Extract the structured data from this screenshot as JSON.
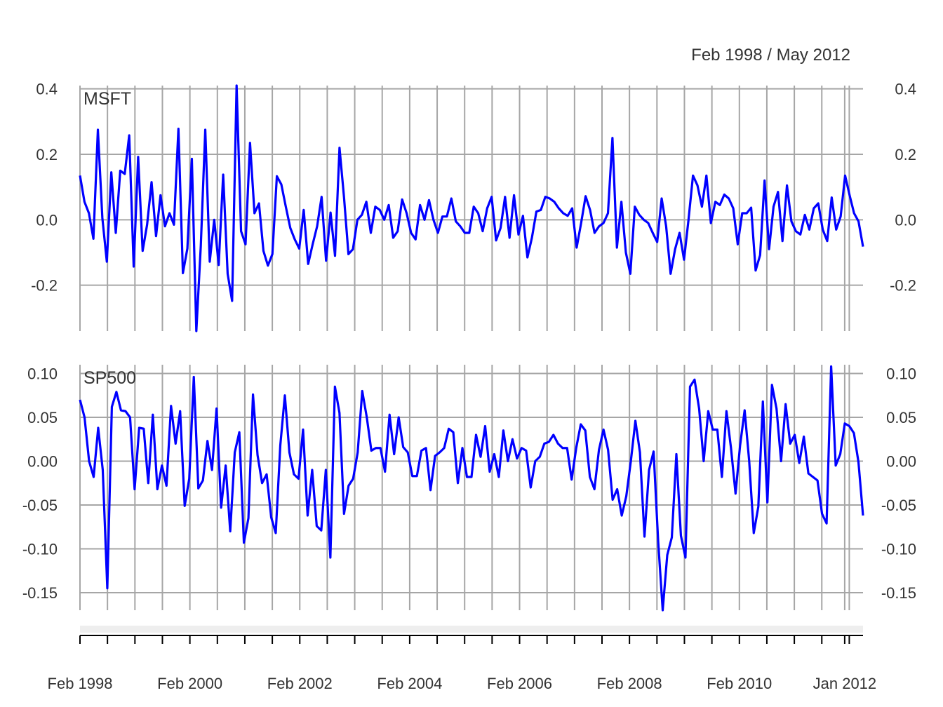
{
  "chart_data": {
    "type": "line",
    "range_label": "Feb 1998 / May 2012",
    "x_start": "1998-02",
    "x_end": "2012-05",
    "x_ticks": [
      "Feb 1998",
      "Feb 2000",
      "Feb 2002",
      "Feb 2004",
      "Feb 2006",
      "Feb 2008",
      "Feb 2010",
      "Jan 2012"
    ],
    "grid": true,
    "line_color": "#0000ff",
    "grid_color": "#a6a6a6",
    "panels": [
      {
        "name": "MSFT",
        "ylim": [
          -0.34,
          0.41
        ],
        "y_ticks": [
          -0.2,
          0.0,
          0.2,
          0.4
        ],
        "y_tick_labels": [
          "-0.2",
          "0.0",
          "0.2",
          "0.4"
        ],
        "values": [
          0.135,
          0.055,
          0.02,
          -0.058,
          0.275,
          0.005,
          -0.128,
          0.145,
          -0.04,
          0.15,
          0.14,
          0.258,
          -0.143,
          0.192,
          -0.095,
          -0.015,
          0.115,
          -0.05,
          0.075,
          -0.02,
          0.02,
          -0.015,
          0.278,
          -0.163,
          -0.088,
          0.186,
          -0.34,
          -0.08,
          0.275,
          -0.128,
          0.0,
          -0.138,
          0.138,
          -0.165,
          -0.248,
          0.41,
          -0.035,
          -0.075,
          0.235,
          0.02,
          0.05,
          -0.095,
          -0.14,
          -0.105,
          0.133,
          0.108,
          0.04,
          -0.025,
          -0.06,
          -0.088,
          0.03,
          -0.135,
          -0.075,
          -0.02,
          0.07,
          -0.125,
          0.022,
          -0.11,
          0.22,
          0.07,
          -0.105,
          -0.09,
          0.0,
          0.015,
          0.055,
          -0.04,
          0.04,
          0.03,
          0.0,
          0.045,
          -0.055,
          -0.035,
          0.062,
          0.02,
          -0.04,
          -0.06,
          0.045,
          0.0,
          0.06,
          0.0,
          -0.04,
          0.01,
          0.01,
          0.065,
          -0.005,
          -0.02,
          -0.04,
          -0.04,
          0.04,
          0.02,
          -0.035,
          0.035,
          0.07,
          -0.063,
          -0.025,
          0.07,
          -0.055,
          0.075,
          -0.045,
          0.012,
          -0.115,
          -0.055,
          0.025,
          0.03,
          0.07,
          0.065,
          0.055,
          0.035,
          0.02,
          0.012,
          0.035,
          -0.085,
          -0.01,
          0.072,
          0.03,
          -0.04,
          -0.02,
          -0.01,
          0.02,
          0.25,
          -0.085,
          0.055,
          -0.1,
          -0.165,
          0.04,
          0.015,
          0.0,
          -0.01,
          -0.04,
          -0.068,
          0.065,
          -0.02,
          -0.165,
          -0.09,
          -0.04,
          -0.122,
          0.0,
          0.135,
          0.105,
          0.04,
          0.135,
          -0.01,
          0.055,
          0.045,
          0.077,
          0.065,
          0.035,
          -0.075,
          0.02,
          0.02,
          0.037,
          -0.155,
          -0.108,
          0.12,
          -0.09,
          0.04,
          0.085,
          -0.065,
          0.105,
          -0.005,
          -0.035,
          -0.045,
          0.015,
          -0.03,
          0.035,
          0.05,
          -0.03,
          -0.065,
          0.068,
          -0.03,
          0.01,
          0.135,
          0.075,
          0.02,
          -0.005,
          -0.082
        ]
      },
      {
        "name": "SP500",
        "ylim": [
          -0.17,
          0.11
        ],
        "y_ticks": [
          -0.15,
          -0.1,
          -0.05,
          0.0,
          0.05,
          0.1
        ],
        "y_tick_labels": [
          "-0.15",
          "-0.10",
          "-0.05",
          "0.00",
          "0.05",
          "0.10"
        ],
        "values": [
          0.07,
          0.05,
          0.0,
          -0.018,
          0.038,
          -0.01,
          -0.145,
          0.062,
          0.079,
          0.058,
          0.057,
          0.05,
          -0.032,
          0.038,
          0.037,
          -0.025,
          0.053,
          -0.032,
          -0.005,
          -0.028,
          0.063,
          0.02,
          0.057,
          -0.051,
          -0.02,
          0.096,
          -0.031,
          -0.022,
          0.023,
          -0.01,
          0.06,
          -0.053,
          -0.005,
          -0.08,
          0.01,
          0.033,
          -0.093,
          -0.065,
          0.076,
          0.007,
          -0.025,
          -0.015,
          -0.064,
          -0.082,
          0.018,
          0.075,
          0.01,
          -0.015,
          -0.02,
          0.036,
          -0.062,
          -0.01,
          -0.074,
          -0.079,
          -0.01,
          -0.11,
          0.085,
          0.055,
          -0.06,
          -0.028,
          -0.02,
          0.01,
          0.08,
          0.05,
          0.012,
          0.015,
          0.015,
          -0.012,
          0.053,
          0.008,
          0.05,
          0.016,
          0.01,
          -0.017,
          -0.017,
          0.012,
          0.015,
          -0.033,
          0.006,
          0.01,
          0.015,
          0.037,
          0.033,
          -0.025,
          0.015,
          -0.018,
          -0.018,
          0.03,
          0.005,
          0.04,
          -0.012,
          0.008,
          -0.018,
          0.035,
          0.0,
          0.025,
          0.003,
          0.015,
          0.012,
          -0.03,
          0.0,
          0.005,
          0.02,
          0.022,
          0.03,
          0.02,
          0.015,
          0.015,
          -0.021,
          0.015,
          0.042,
          0.035,
          -0.018,
          -0.032,
          0.013,
          0.036,
          0.013,
          -0.044,
          -0.032,
          -0.062,
          -0.04,
          0.0,
          0.046,
          0.01,
          -0.086,
          -0.01,
          0.011,
          -0.091,
          -0.17,
          -0.107,
          -0.087,
          0.008,
          -0.085,
          -0.11,
          0.085,
          0.093,
          0.06,
          0.0,
          0.057,
          0.036,
          0.036,
          -0.018,
          0.057,
          0.015,
          -0.037,
          0.018,
          0.058,
          0.0,
          -0.082,
          -0.052,
          0.068,
          -0.047,
          0.087,
          0.06,
          0.0,
          0.065,
          0.02,
          0.03,
          -0.002,
          0.028,
          -0.014,
          -0.018,
          -0.022,
          -0.06,
          -0.071,
          0.108,
          -0.005,
          0.008,
          0.043,
          0.04,
          0.032,
          -0.001,
          -0.062
        ]
      }
    ]
  }
}
